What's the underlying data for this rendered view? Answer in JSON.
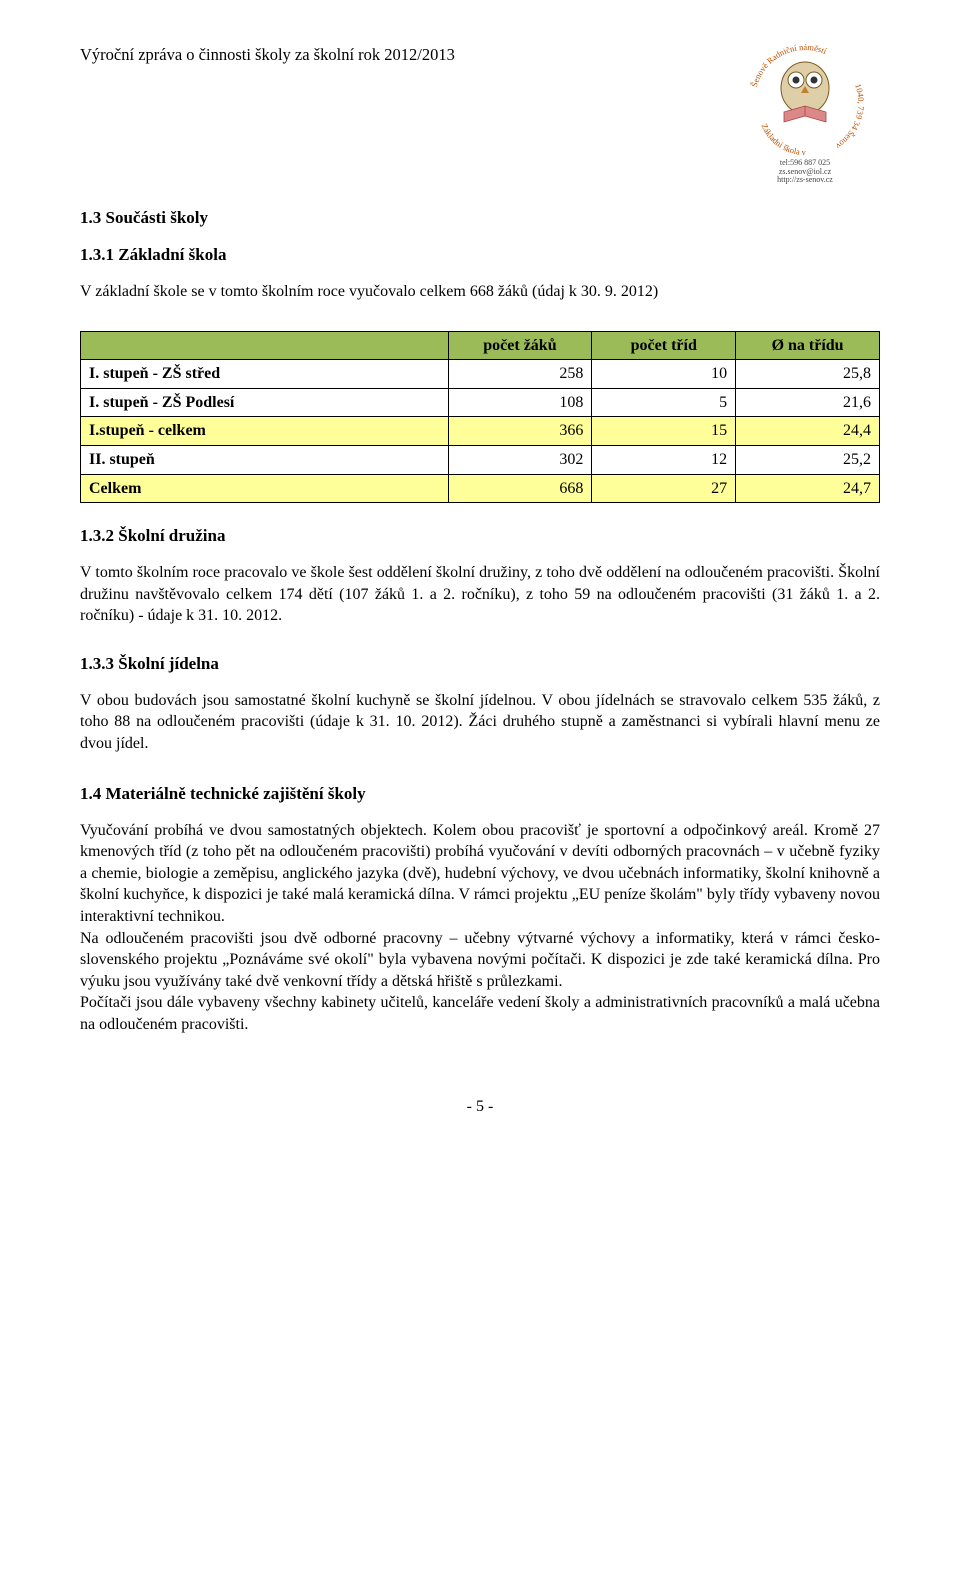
{
  "header": {
    "title": "Výroční zpráva o činnosti školy za školní rok 2012/2013",
    "logo_top_text": "Šenově Radniční náměstí",
    "logo_bottom_text": "Základní škola v",
    "logo_side_text": "1040, 739 34 Šenov",
    "contact_line1": "tel:596 887 025",
    "contact_line2": "zs.senov@iol.cz",
    "contact_line3": "http://zs-senov.cz"
  },
  "sec_1_3": {
    "title": "1.3   Součásti školy"
  },
  "sec_1_3_1": {
    "title": "1.3.1   Základní škola",
    "para": "V základní škole se v tomto školním roce vyučovalo celkem 668 žáků (údaj k 30. 9. 2012)"
  },
  "table": {
    "columns": [
      "",
      "počet žáků",
      "počet tříd",
      "Ø na třídu"
    ],
    "col_widths": [
      "46%",
      "18%",
      "18%",
      "18%"
    ],
    "header_bg": "#9bbb59",
    "highlight_bg": "#ffff99",
    "border_color": "#000000",
    "rows": [
      {
        "label": "I. stupeň - ZŠ střed",
        "v": [
          "258",
          "10",
          "25,8"
        ],
        "highlight": false
      },
      {
        "label": "I. stupeň - ZŠ Podlesí",
        "v": [
          "108",
          "5",
          "21,6"
        ],
        "highlight": false
      },
      {
        "label": "I.stupeň - celkem",
        "v": [
          "366",
          "15",
          "24,4"
        ],
        "highlight": true
      },
      {
        "label": "II. stupeň",
        "v": [
          "302",
          "12",
          "25,2"
        ],
        "highlight": false
      },
      {
        "label": "Celkem",
        "v": [
          "668",
          "27",
          "24,7"
        ],
        "highlight": true
      }
    ]
  },
  "sec_1_3_2": {
    "title": "1.3.2   Školní družina",
    "para": "V tomto školním roce pracovalo ve škole šest oddělení školní družiny, z toho dvě oddělení na odloučeném pracovišti. Školní družinu navštěvovalo celkem 174 dětí (107 žáků 1. a 2. ročníku), z toho 59 na odloučeném pracovišti (31 žáků 1. a 2. ročníku) - údaje k 31. 10. 2012."
  },
  "sec_1_3_3": {
    "title": "1.3.3   Školní jídelna",
    "para": "V obou budovách jsou samostatné školní kuchyně se školní jídelnou. V obou jídelnách se stravovalo celkem 535 žáků, z toho 88 na odloučeném pracovišti (údaje k 31. 10. 2012). Žáci druhého stupně a zaměstnanci si vybírali hlavní menu ze dvou jídel."
  },
  "sec_1_4": {
    "title": "1.4   Materiálně technické zajištění školy",
    "para1": "Vyučování probíhá ve dvou samostatných objektech. Kolem obou pracovišť je sportovní a odpočinkový areál. Kromě 27 kmenových tříd (z toho pět na odloučeném pracovišti) probíhá vyučování v devíti odborných pracovnách – v učebně fyziky a chemie, biologie a zeměpisu, anglického jazyka (dvě), hudební výchovy, ve dvou učebnách informatiky, školní knihovně a školní kuchyňce, k dispozici je také malá keramická dílna. V rámci projektu „EU peníze školám\" byly třídy vybaveny novou interaktivní technikou.",
    "para2": "Na odloučeném pracovišti jsou dvě odborné pracovny – učebny výtvarné výchovy a informatiky, která v rámci česko-slovenského projektu „Poznáváme své okolí\" byla vybavena novými počítači. K dispozici je zde také keramická dílna. Pro výuku jsou využívány také dvě venkovní třídy a dětská hřiště s průlezkami.",
    "para3": "Počítači jsou dále vybaveny všechny kabinety učitelů, kanceláře vedení školy a administrativních pracovníků a malá učebna na odloučeném pracovišti."
  },
  "footer": {
    "page": "- 5 -"
  }
}
